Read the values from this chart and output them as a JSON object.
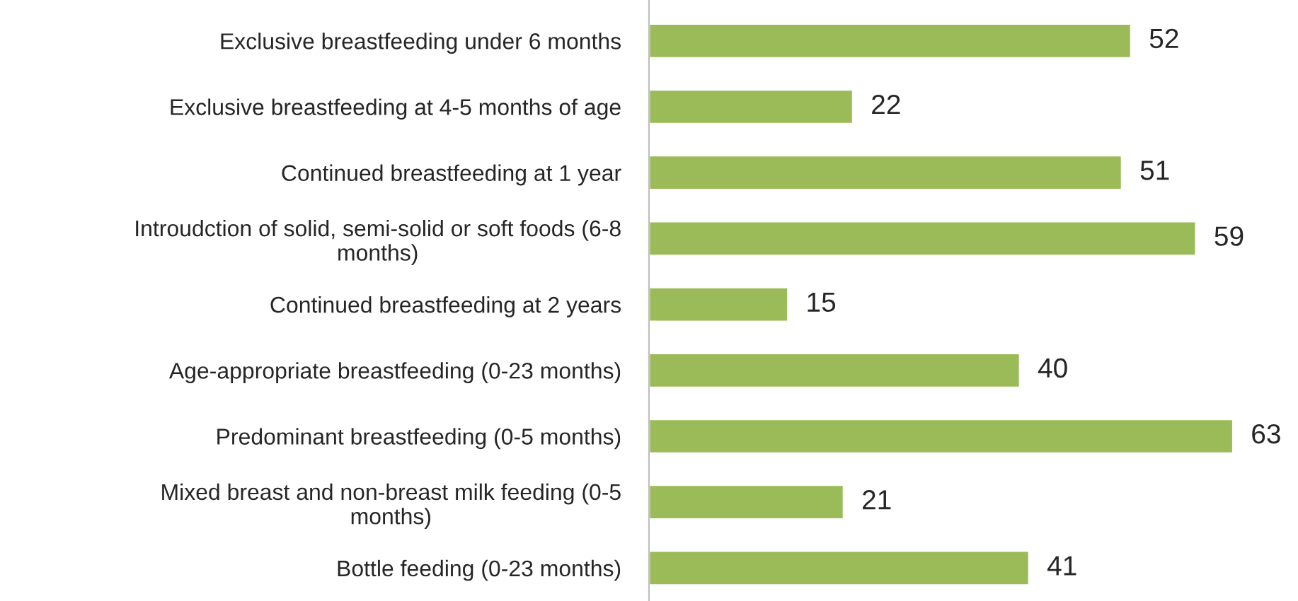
{
  "chart_data": {
    "type": "bar",
    "orientation": "horizontal",
    "categories": [
      "Exclusive breastfeeding under 6 months",
      "Exclusive breastfeeding at 4-5 months of age",
      "Continued breastfeeding at 1 year",
      "Introudction of solid, semi-solid or soft foods (6-8\nmonths)",
      "Continued breastfeeding at 2 years",
      "Age-appropriate breastfeeding (0-23 months)",
      "Predominant breastfeeding (0-5 months)",
      "Mixed breast and non-breast milk feeding (0-5\nmonths)",
      "Bottle feeding (0-23 months)"
    ],
    "values": [
      52,
      22,
      51,
      59,
      15,
      40,
      63,
      21,
      41
    ],
    "color": "#9bbb59",
    "data_labels": true,
    "grid": false,
    "legend": false
  }
}
